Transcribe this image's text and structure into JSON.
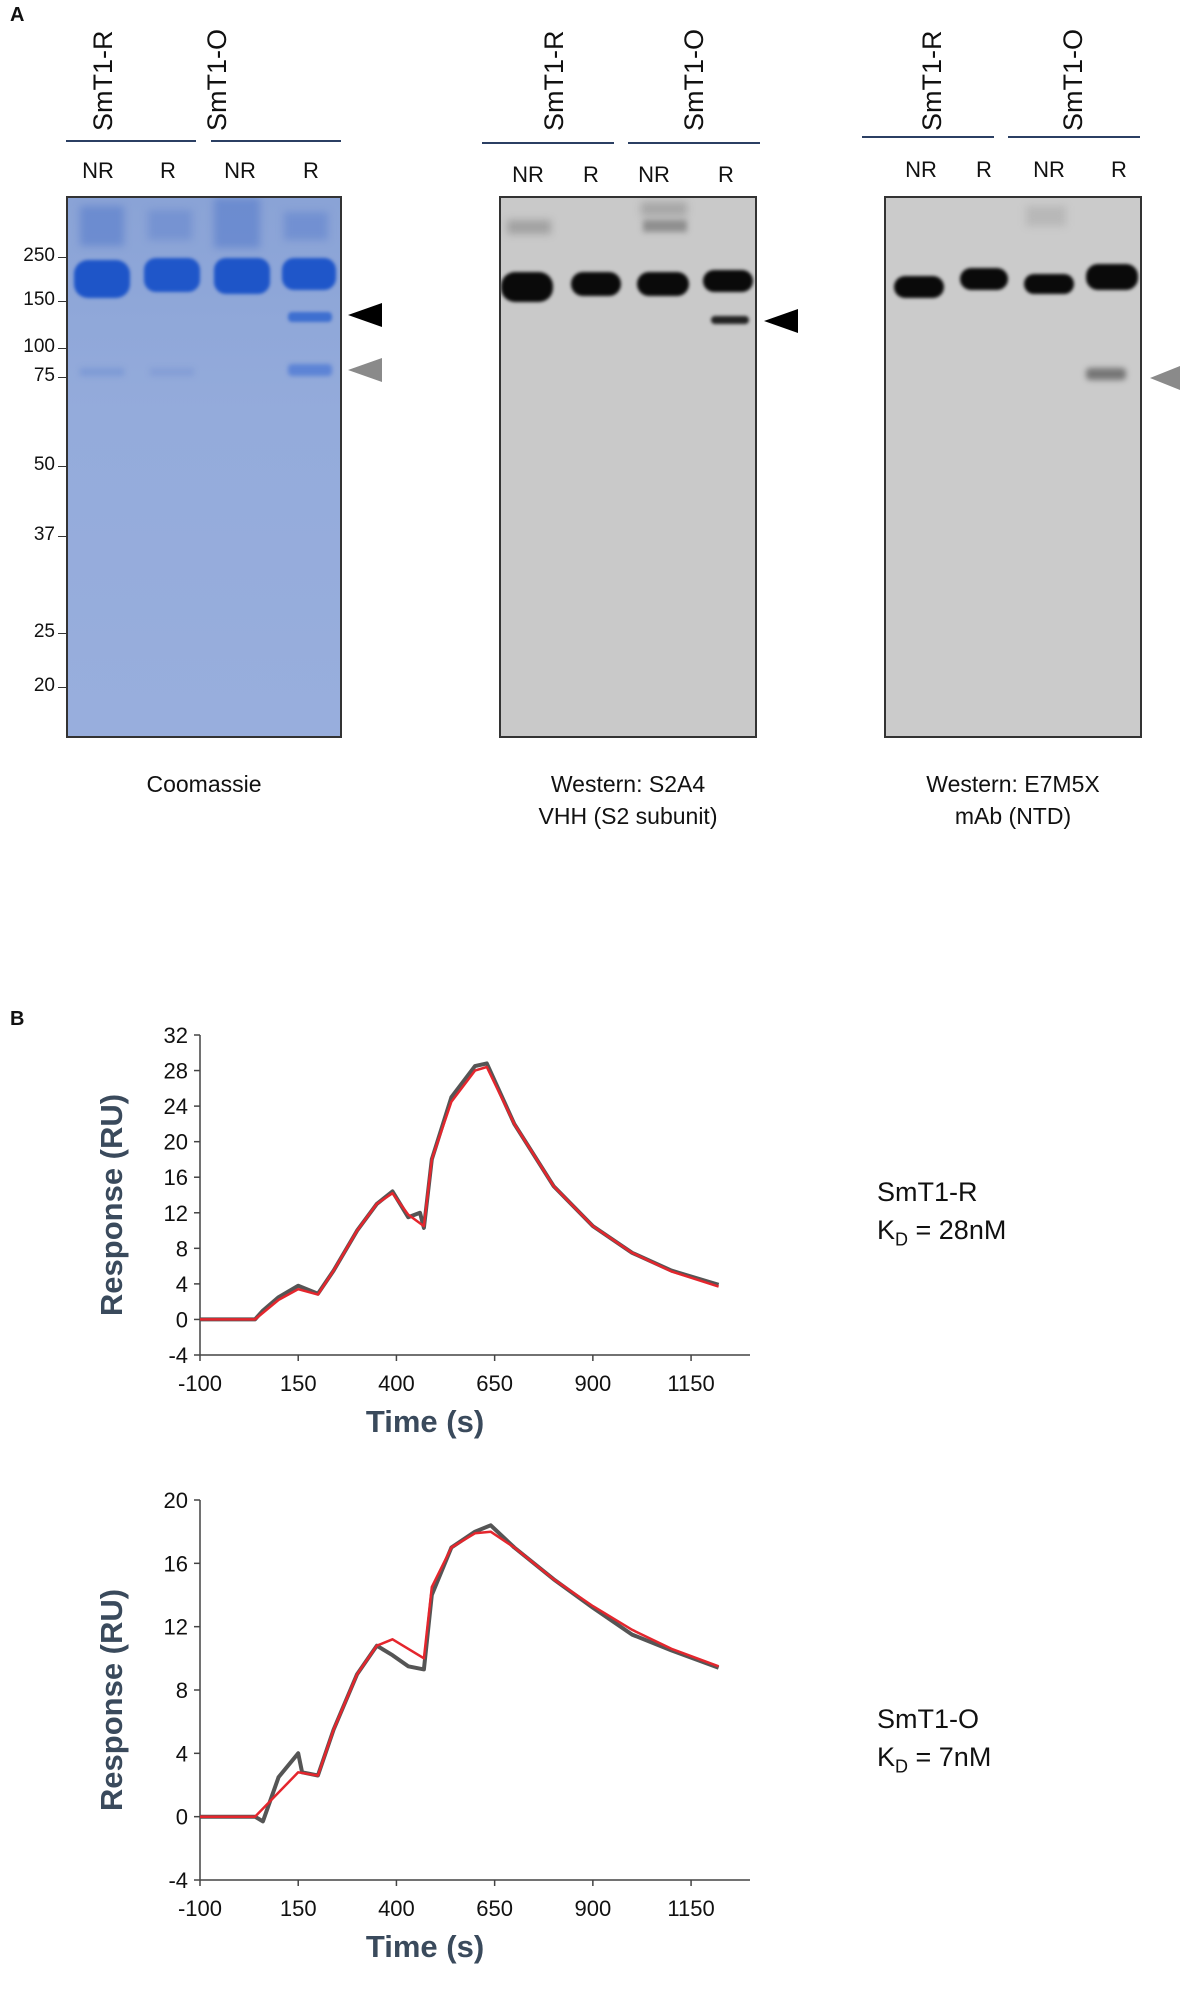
{
  "panelA": {
    "label": "A",
    "blots": [
      {
        "name": "coomassie",
        "groups": [
          "SmT1-R",
          "SmT1-O"
        ],
        "lanes": [
          "NR",
          "R",
          "NR",
          "R"
        ],
        "caption": "Coomassie",
        "markers": [
          "250",
          "150",
          "100",
          "75",
          "50",
          "37",
          "25",
          "20"
        ],
        "colors": {
          "background": "#8ea6d8",
          "band": "#2158c9"
        }
      },
      {
        "name": "western-s2a4",
        "groups": [
          "SmT1-R",
          "SmT1-O"
        ],
        "lanes": [
          "NR",
          "R",
          "NR",
          "R"
        ],
        "caption": "Western: S2A4\nVHH (S2 subunit)",
        "colors": {
          "background": "#c8c8c8",
          "band": "#0a0a0a"
        }
      },
      {
        "name": "western-e7m5x",
        "groups": [
          "SmT1-R",
          "SmT1-O"
        ],
        "lanes": [
          "NR",
          "R",
          "NR",
          "R"
        ],
        "caption": "Western: E7M5X\nmAb (NTD)",
        "colors": {
          "background": "#cbcbcb",
          "band": "#0a0a0a"
        }
      }
    ],
    "arrow_colors": {
      "black": "#000000",
      "gray": "#8a8a8a"
    }
  },
  "panelB": {
    "label": "B",
    "curve_colors": {
      "data": "#555555",
      "fit": "#e4262d"
    }
  },
  "chart_data": [
    {
      "type": "line",
      "name": "smt1-r-sensorgram",
      "annotation_line1": "SmT1-R",
      "annotation_k": "K",
      "annotation_sub": "D",
      "annotation_rest": " = 28nM",
      "xlabel": "Time (s)",
      "ylabel": "Response (RU)",
      "xlim": [
        -100,
        1300
      ],
      "ylim": [
        -4,
        32
      ],
      "xticks": [
        "-100",
        "150",
        "400",
        "650",
        "900",
        "1150"
      ],
      "yticks": [
        "-4",
        "0",
        "4",
        "8",
        "12",
        "16",
        "20",
        "24",
        "28",
        "32"
      ],
      "series": [
        {
          "name": "data",
          "x": [
            -100,
            40,
            60,
            100,
            150,
            200,
            240,
            300,
            350,
            390,
            430,
            460,
            470,
            490,
            540,
            600,
            630,
            700,
            800,
            900,
            1000,
            1100,
            1220
          ],
          "y": [
            0,
            0,
            1,
            2.5,
            3.8,
            2.9,
            5.5,
            10,
            13,
            14.4,
            11.5,
            12,
            10.3,
            18,
            25,
            28.5,
            28.8,
            22,
            15,
            10.5,
            7.5,
            5.5,
            3.9
          ]
        },
        {
          "name": "fit",
          "x": [
            -100,
            40,
            100,
            150,
            200,
            240,
            300,
            350,
            390,
            430,
            470,
            490,
            540,
            600,
            630,
            700,
            800,
            900,
            1000,
            1100,
            1220
          ],
          "y": [
            0,
            0,
            2.2,
            3.4,
            2.8,
            5.5,
            10,
            13,
            14.2,
            11.8,
            10.5,
            18,
            24.5,
            28,
            28.4,
            22,
            15,
            10.5,
            7.5,
            5.4,
            3.7
          ]
        }
      ]
    },
    {
      "type": "line",
      "name": "smt1-o-sensorgram",
      "annotation_line1": "SmT1-O",
      "annotation_k": "K",
      "annotation_sub": "D",
      "annotation_rest": " = 7nM",
      "xlabel": "Time (s)",
      "ylabel": "Response (RU)",
      "xlim": [
        -100,
        1300
      ],
      "ylim": [
        -4,
        20
      ],
      "xticks": [
        "-100",
        "150",
        "400",
        "650",
        "900",
        "1150"
      ],
      "yticks": [
        "-4",
        "0",
        "4",
        "8",
        "12",
        "16",
        "20"
      ],
      "series": [
        {
          "name": "data",
          "x": [
            -100,
            40,
            60,
            100,
            150,
            160,
            200,
            240,
            300,
            350,
            390,
            430,
            470,
            490,
            540,
            600,
            640,
            700,
            800,
            900,
            1000,
            1100,
            1220
          ],
          "y": [
            0,
            0,
            -0.3,
            2.5,
            4,
            2.8,
            2.6,
            5.5,
            9,
            10.8,
            10.2,
            9.5,
            9.3,
            14,
            17,
            18,
            18.4,
            17,
            15,
            13.2,
            11.5,
            10.5,
            9.4
          ]
        },
        {
          "name": "fit",
          "x": [
            -100,
            40,
            150,
            200,
            240,
            300,
            350,
            390,
            430,
            470,
            490,
            540,
            600,
            640,
            700,
            800,
            900,
            1000,
            1100,
            1220
          ],
          "y": [
            0,
            0,
            2.8,
            2.6,
            5.5,
            9,
            10.8,
            11.2,
            10.6,
            10,
            14.5,
            17,
            17.9,
            18,
            17,
            15,
            13.3,
            11.8,
            10.6,
            9.5
          ]
        }
      ]
    }
  ]
}
